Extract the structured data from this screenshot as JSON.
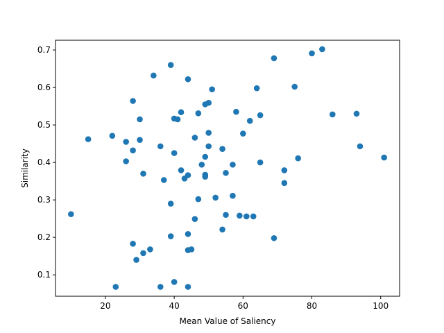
{
  "chart_data": {
    "type": "scatter",
    "title": "",
    "xlabel": "Mean Value of Saliency",
    "ylabel": "Similarity",
    "xlim": [
      5.5,
      105.5
    ],
    "ylim": [
      0.043,
      0.726
    ],
    "xticks": [
      20,
      40,
      60,
      80,
      100
    ],
    "yticks": [
      0.1,
      0.2,
      0.3,
      0.4,
      0.5,
      0.6,
      0.7
    ],
    "grid": false,
    "marker_color": "#1f77b4",
    "series": [
      {
        "points": [
          [
            10,
            0.262
          ],
          [
            15,
            0.462
          ],
          [
            22,
            0.471
          ],
          [
            23,
            0.068
          ],
          [
            26,
            0.455
          ],
          [
            26,
            0.403
          ],
          [
            28,
            0.564
          ],
          [
            28,
            0.432
          ],
          [
            28,
            0.183
          ],
          [
            29,
            0.14
          ],
          [
            30,
            0.515
          ],
          [
            30,
            0.46
          ],
          [
            31,
            0.37
          ],
          [
            31,
            0.158
          ],
          [
            33,
            0.168
          ],
          [
            34,
            0.632
          ],
          [
            36,
            0.443
          ],
          [
            36,
            0.068
          ],
          [
            37,
            0.353
          ],
          [
            39,
            0.66
          ],
          [
            39,
            0.29
          ],
          [
            39,
            0.203
          ],
          [
            40,
            0.517
          ],
          [
            40,
            0.425
          ],
          [
            40,
            0.081
          ],
          [
            41,
            0.515
          ],
          [
            42,
            0.534
          ],
          [
            42,
            0.379
          ],
          [
            43,
            0.357
          ],
          [
            44,
            0.622
          ],
          [
            44,
            0.366
          ],
          [
            44,
            0.209
          ],
          [
            44,
            0.166
          ],
          [
            44,
            0.068
          ],
          [
            45,
            0.168
          ],
          [
            46,
            0.466
          ],
          [
            46,
            0.249
          ],
          [
            47,
            0.531
          ],
          [
            47,
            0.302
          ],
          [
            48,
            0.394
          ],
          [
            49,
            0.555
          ],
          [
            49,
            0.415
          ],
          [
            49,
            0.367
          ],
          [
            49,
            0.362
          ],
          [
            50,
            0.559
          ],
          [
            50,
            0.479
          ],
          [
            50,
            0.443
          ],
          [
            51,
            0.595
          ],
          [
            52,
            0.306
          ],
          [
            54,
            0.436
          ],
          [
            54,
            0.221
          ],
          [
            55,
            0.372
          ],
          [
            55,
            0.26
          ],
          [
            57,
            0.394
          ],
          [
            57,
            0.311
          ],
          [
            58,
            0.535
          ],
          [
            59,
            0.258
          ],
          [
            60,
            0.477
          ],
          [
            61,
            0.256
          ],
          [
            62,
            0.511
          ],
          [
            63,
            0.256
          ],
          [
            64,
            0.598
          ],
          [
            65,
            0.526
          ],
          [
            65,
            0.4
          ],
          [
            69,
            0.678
          ],
          [
            69,
            0.198
          ],
          [
            72,
            0.379
          ],
          [
            72,
            0.345
          ],
          [
            75,
            0.602
          ],
          [
            76,
            0.411
          ],
          [
            80,
            0.691
          ],
          [
            83,
            0.702
          ],
          [
            86,
            0.528
          ],
          [
            93,
            0.53
          ],
          [
            94,
            0.443
          ],
          [
            101,
            0.413
          ]
        ]
      }
    ]
  }
}
